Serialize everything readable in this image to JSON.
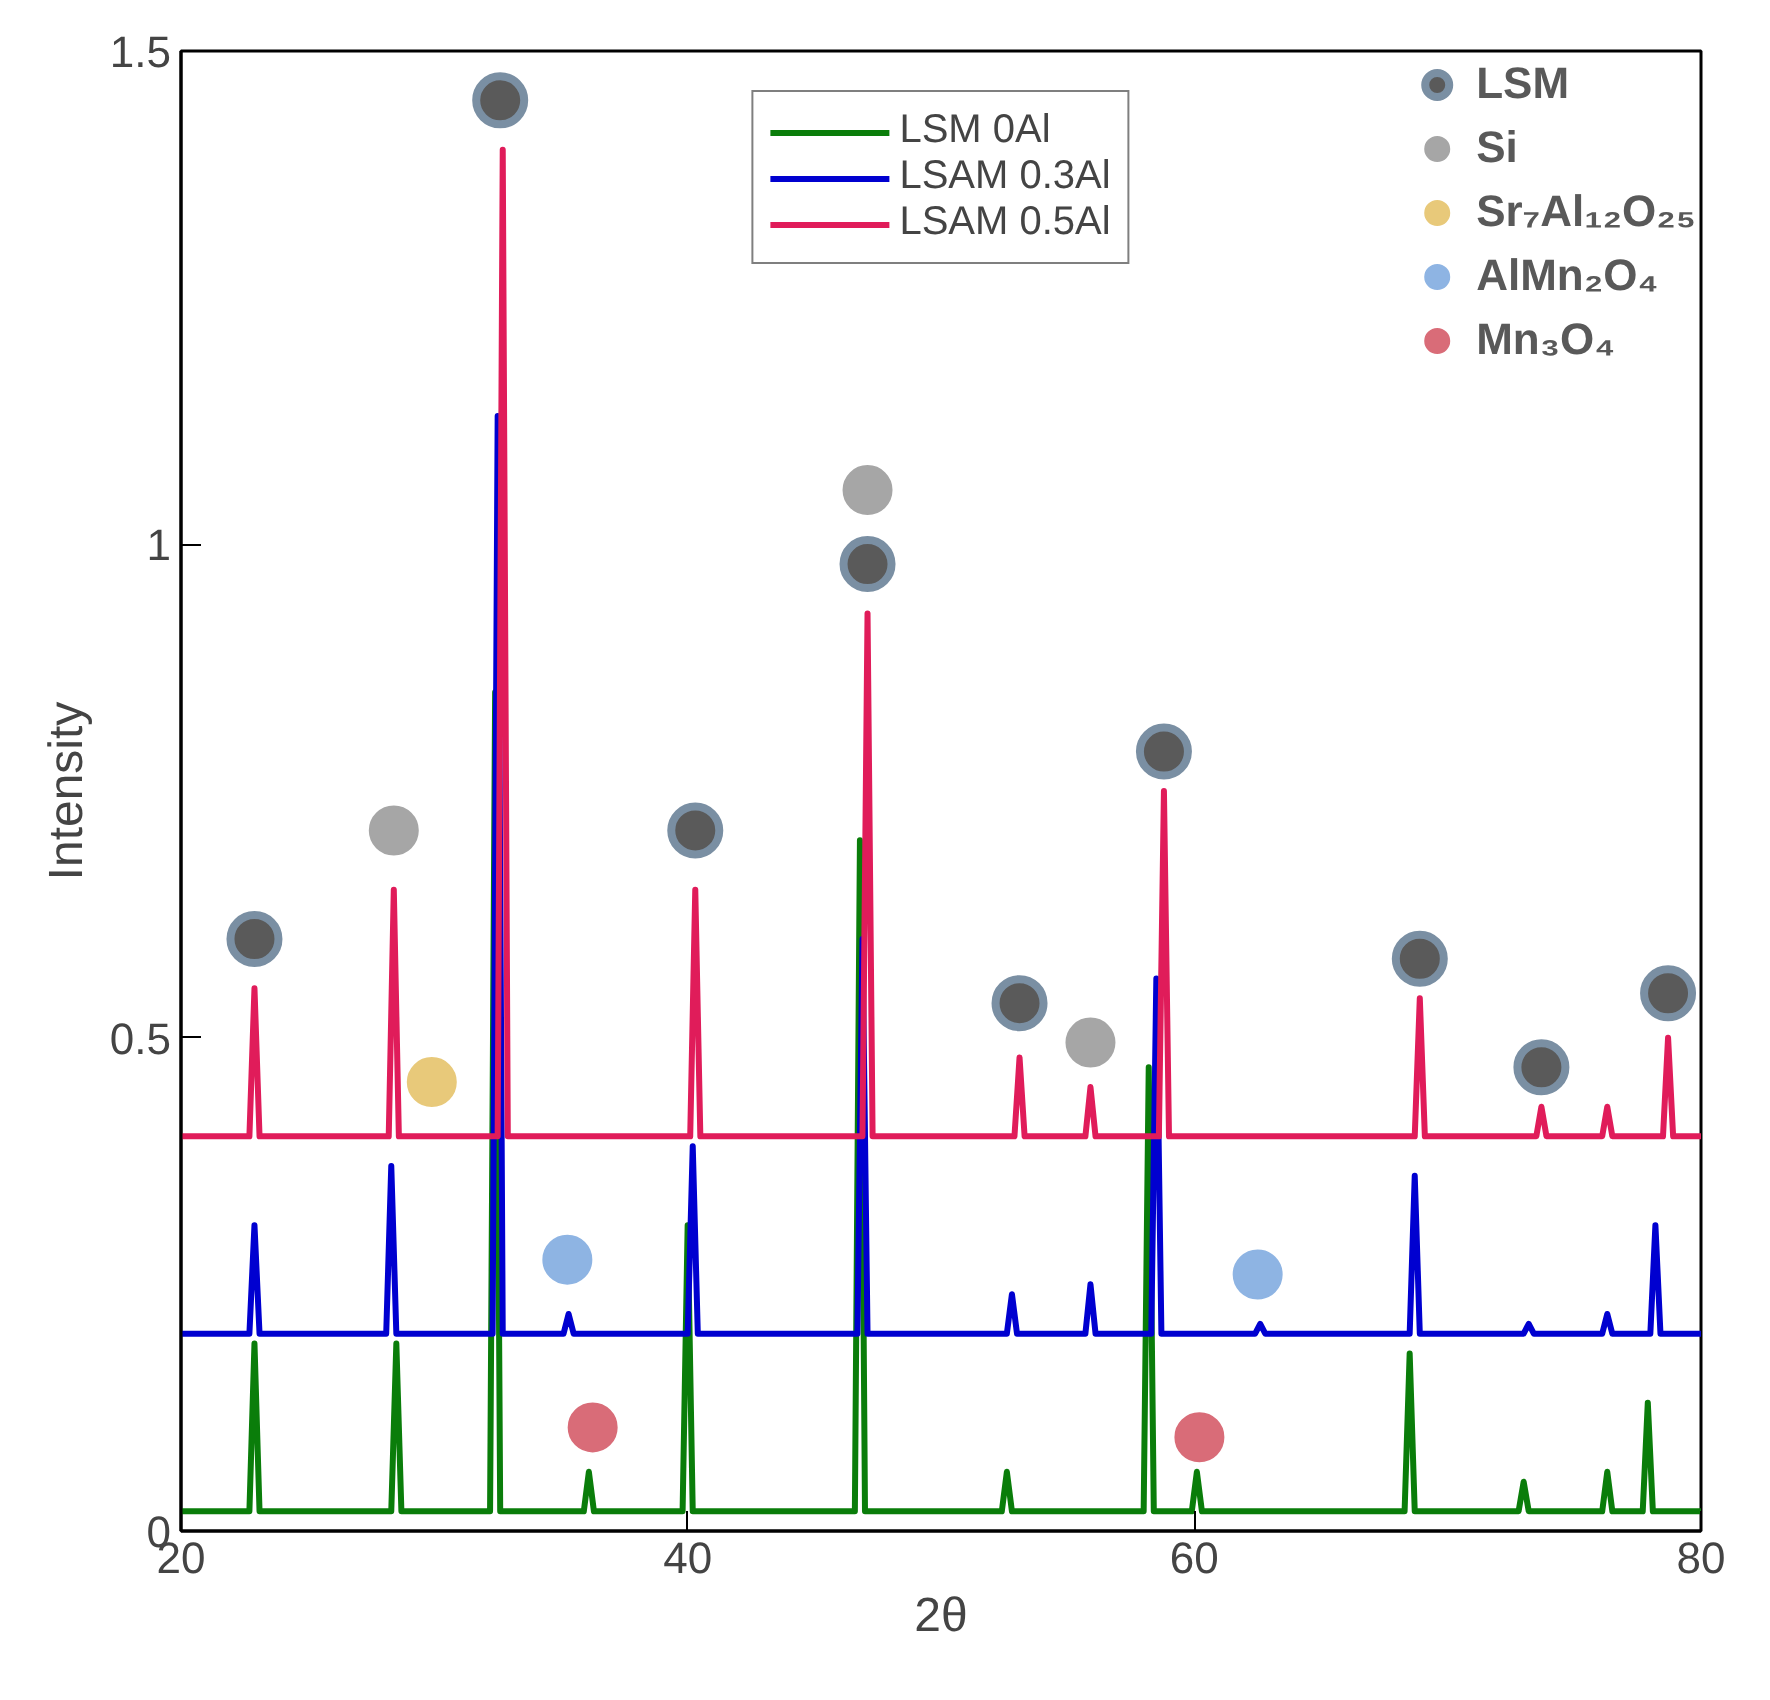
{
  "chart_data": {
    "type": "line",
    "xlabel": "2θ",
    "ylabel": "Intensity",
    "xlim": [
      20,
      80
    ],
    "ylim": [
      0,
      1.5
    ],
    "xticks": [
      20,
      40,
      60,
      80
    ],
    "yticks": [
      0,
      0.5,
      1,
      1.5
    ],
    "legend": "top",
    "line_style": "solid",
    "series": [
      {
        "name": "LSM 0Al",
        "color": "#0a7d0a",
        "x": [
          20,
          22.7,
          22.9,
          23.1,
          28.3,
          28.5,
          28.7,
          32.2,
          32.4,
          32.6,
          35.9,
          36.1,
          36.3,
          39.8,
          40.0,
          40.2,
          46.6,
          46.8,
          47.0,
          52.4,
          52.6,
          52.8,
          58.0,
          58.2,
          58.4,
          59.9,
          60.1,
          60.3,
          68.3,
          68.5,
          68.7,
          72.8,
          73.0,
          73.2,
          76.1,
          76.3,
          76.5,
          77.7,
          77.9,
          78.1,
          80
        ],
        "values": [
          0.02,
          0.02,
          0.19,
          0.02,
          0.02,
          0.19,
          0.02,
          0.02,
          0.85,
          0.02,
          0.02,
          0.06,
          0.02,
          0.02,
          0.31,
          0.02,
          0.02,
          0.7,
          0.02,
          0.02,
          0.06,
          0.02,
          0.02,
          0.47,
          0.02,
          0.02,
          0.06,
          0.02,
          0.02,
          0.18,
          0.02,
          0.02,
          0.05,
          0.02,
          0.02,
          0.06,
          0.02,
          0.02,
          0.13,
          0.02,
          0.02
        ]
      },
      {
        "name": "LSAM 0.3Al",
        "color": "#0000d0",
        "x": [
          20,
          22.7,
          22.9,
          23.1,
          28.1,
          28.3,
          28.5,
          32.3,
          32.5,
          32.7,
          35.1,
          35.3,
          35.5,
          40.0,
          40.2,
          40.4,
          46.7,
          46.9,
          47.1,
          52.6,
          52.8,
          53.0,
          55.7,
          55.9,
          56.1,
          58.3,
          58.5,
          58.7,
          62.4,
          62.6,
          62.8,
          68.5,
          68.7,
          68.9,
          73.0,
          73.2,
          73.4,
          76.1,
          76.3,
          76.5,
          78.0,
          78.2,
          78.4,
          80
        ],
        "values": [
          0.2,
          0.2,
          0.31,
          0.2,
          0.2,
          0.37,
          0.2,
          0.2,
          1.13,
          0.2,
          0.2,
          0.22,
          0.2,
          0.2,
          0.39,
          0.2,
          0.2,
          0.6,
          0.2,
          0.2,
          0.24,
          0.2,
          0.2,
          0.25,
          0.2,
          0.2,
          0.56,
          0.2,
          0.2,
          0.21,
          0.2,
          0.2,
          0.36,
          0.2,
          0.2,
          0.21,
          0.2,
          0.2,
          0.22,
          0.2,
          0.2,
          0.31,
          0.2,
          0.2
        ]
      },
      {
        "name": "LSAM 0.5Al",
        "color": "#e01c5a",
        "x": [
          20,
          22.7,
          22.9,
          23.1,
          28.2,
          28.4,
          28.6,
          32.5,
          32.7,
          32.9,
          40.1,
          40.3,
          40.5,
          46.9,
          47.1,
          47.3,
          52.9,
          53.1,
          53.3,
          55.7,
          55.9,
          56.1,
          58.6,
          58.8,
          59.0,
          68.7,
          68.9,
          69.1,
          73.5,
          73.7,
          73.9,
          76.1,
          76.3,
          76.5,
          78.5,
          78.7,
          78.9,
          80
        ],
        "values": [
          0.4,
          0.4,
          0.55,
          0.4,
          0.4,
          0.65,
          0.4,
          0.4,
          1.4,
          0.4,
          0.4,
          0.65,
          0.4,
          0.4,
          0.93,
          0.4,
          0.4,
          0.48,
          0.4,
          0.4,
          0.45,
          0.4,
          0.4,
          0.75,
          0.4,
          0.4,
          0.54,
          0.4,
          0.4,
          0.43,
          0.4,
          0.4,
          0.43,
          0.4,
          0.4,
          0.5,
          0.4,
          0.4
        ]
      },
      {
        "name": "LSM",
        "type": "scatter",
        "color": "#5a5a5a",
        "x": [
          22.9,
          32.6,
          40.3,
          47.1,
          53.1,
          58.8,
          68.9,
          73.7,
          78.7
        ],
        "values": [
          0.6,
          1.45,
          0.71,
          0.98,
          0.535,
          0.79,
          0.58,
          0.47,
          0.545
        ]
      },
      {
        "name": "Si",
        "type": "scatter",
        "color": "#a6a6a6",
        "x": [
          28.4,
          47.1,
          55.9
        ],
        "values": [
          0.71,
          1.055,
          0.495
        ]
      },
      {
        "name": "Sr₇Al₁₂O₂₅",
        "type": "scatter",
        "color": "#e8c97a",
        "x": [
          29.9
        ],
        "values": [
          0.455
        ]
      },
      {
        "name": "AlMn₂O₄",
        "type": "scatter",
        "color": "#8eb4e3",
        "x": [
          35.25,
          62.5
        ],
        "values": [
          0.275,
          0.26
        ]
      },
      {
        "name": "Mn₃O₄",
        "type": "scatter",
        "color": "#d96c78",
        "x": [
          36.25,
          60.2
        ],
        "values": [
          0.105,
          0.095
        ]
      }
    ]
  }
}
